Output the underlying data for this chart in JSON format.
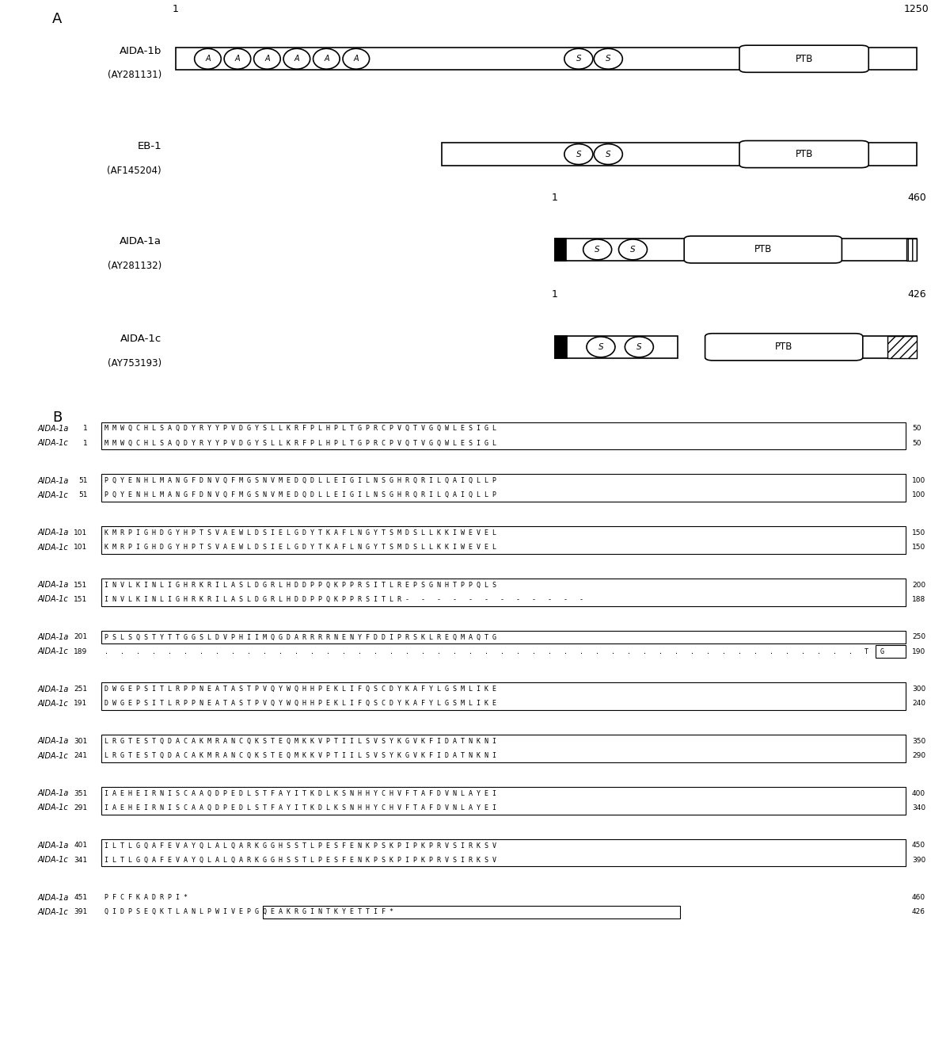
{
  "sequences": [
    {
      "na": "1",
      "sa": "MMWQCHLSAQDYRYYPVDGYSLLKRFPLHPLTGPRCPVQTVGQWLESIGL",
      "ea": "50",
      "nc": "1",
      "sc": "MMWQCHLSAQDYRYYPVDGYSLLKRFPLHPLTGPRCPVQTVGQWLESIGL",
      "ec": "50",
      "box_both": true
    },
    {
      "na": "51",
      "sa": "PQYENHLMANGFDNVQFMGSNVMEDQDLLEIGILNSGHRQRILQAIQLLP",
      "ea": "100",
      "nc": "51",
      "sc": "PQYENHLMANGFDNVQFMGSNVMEDQDLLEIGILNSGHRQRILQAIQLLP",
      "ec": "100",
      "box_both": true
    },
    {
      "na": "101",
      "sa": "KMRPIGHDGYHPTSVAEWLDSIELGDYTKAFLNGYTSMDSLLKKIWEVEL",
      "ea": "150",
      "nc": "101",
      "sc": "KMRPIGHDGYHPTSVAEWLDSIELGDYTKAFLNGYTSMDSLLKKIWEVEL",
      "ec": "150",
      "box_both": true
    },
    {
      "na": "151",
      "sa": "INVLKINLIGHRKRILASLDGRLHDDPPQKPPRSITLREPSGNHTPPQLS",
      "ea": "200",
      "nc": "151",
      "sc": "INVLKINLIGHRKRILASLDGRLHDDPPQKPPRSITLR- - - - - - - - - - - -",
      "ec": "188",
      "box_both": true
    },
    {
      "na": "201",
      "sa": "PSLSQSTYTTGGSLDVPHIIMQGDARRRRNENYFDDIPRSKLREQMAQTG",
      "ea": "250",
      "nc": "189",
      "sc": ". . . . . . . . . . . . . . . . . . . . . . . . . . . . . . . . . . . . . . . . . . . . . . . . T G",
      "ec": "190",
      "box_a_only": true,
      "box_c_end2": true
    },
    {
      "na": "251",
      "sa": "DWGEPSITLRPPNEATASTPVQYWQHHPEKLIFQSCDYKAFYLGSMLIKE",
      "ea": "300",
      "nc": "191",
      "sc": "DWGEPSITLRPPNEATASTPVQYWQHHPEKLIFQSCDYKAFYLGSMLIKE",
      "ec": "240",
      "box_both": true
    },
    {
      "na": "301",
      "sa": "LRGTESTQDACAKMRANCQKSTEQMKKVPTIILSVSYKGVKFIDATNKNI",
      "ea": "350",
      "nc": "241",
      "sc": "LRGTESTQDACAKMRANCQKSTEQMKKVPTIILSVSYKGVKFIDATNKNI",
      "ec": "290",
      "box_both": true
    },
    {
      "na": "351",
      "sa": "IAEHEIRNISCAAQDPEDLSTFAYITKDLKSNHHYCHVFTAFDVNLAYEI",
      "ea": "400",
      "nc": "291",
      "sc": "IAEHEIRNISCAAQDPEDLSTFAYITKDLKSNHHYCHVFTAFDVNLAYEI",
      "ec": "340",
      "box_both": true
    },
    {
      "na": "401",
      "sa": "ILTLGQAFEVAYQLALQARKGGHSSTLPESFENKPSKPIPKPRVSIRKSV",
      "ea": "450",
      "nc": "341",
      "sc": "ILTLGQAFEVAYQLALQARKGGHSSTLPESFENKPSKPIPKPRVSIRKSV",
      "ec": "390",
      "box_both": true
    },
    {
      "na": "451",
      "sa": "PFCFKADRPI*",
      "ea": "460",
      "nc": "391",
      "sc": "QIDPSEQKTLANLPWIVEPGQEAKRGINTKYETTIF*",
      "ec": "426",
      "last_row": true
    }
  ]
}
